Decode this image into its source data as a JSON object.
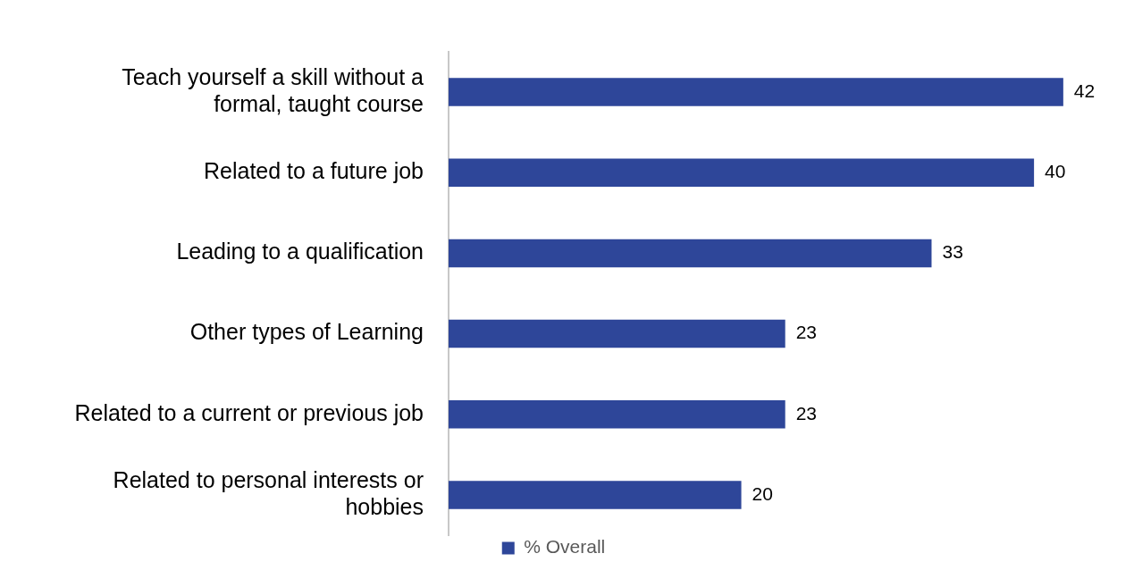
{
  "chart_data": {
    "type": "bar",
    "orientation": "horizontal",
    "categories": [
      "Teach yourself a skill without a formal, taught course",
      "Related to a future job",
      "Leading to a qualification",
      "Other types of Learning",
      "Related to a current or previous job",
      "Related to personal interests or hobbies"
    ],
    "series": [
      {
        "name": "% Overall",
        "color": "#2e4699",
        "values": [
          42,
          40,
          33,
          23,
          23,
          20
        ]
      }
    ],
    "data_labels": true,
    "tick_labels": "y",
    "grid": false,
    "legend": "bottom"
  }
}
